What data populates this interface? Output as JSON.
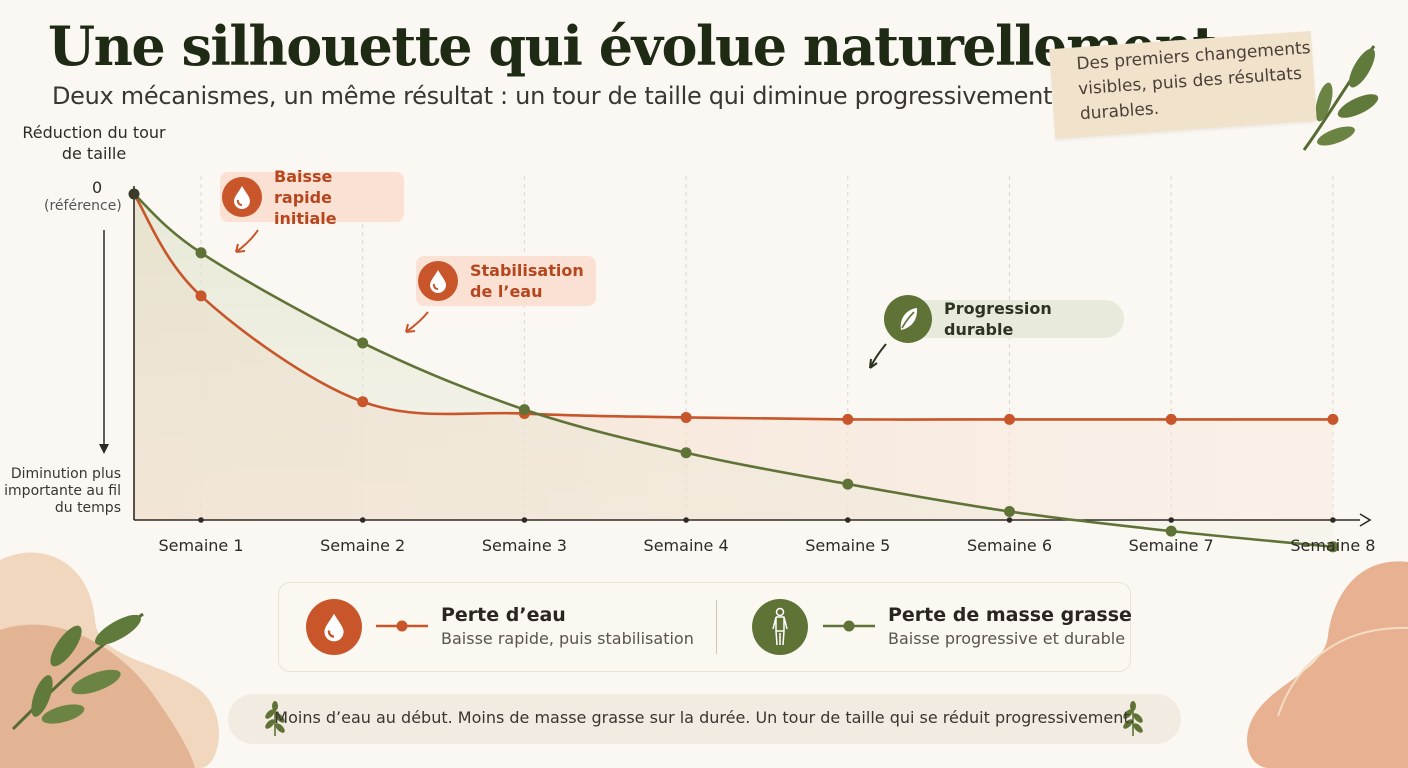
{
  "header": {
    "title": "Une silhouette qui évolue naturellement",
    "subtitle": "Deux mécanismes, un même résultat : un tour de taille qui diminue progressivement."
  },
  "note": {
    "text": "Des premiers changements visibles, puis des résultats durables."
  },
  "axis": {
    "y_title": "Réduction du tour de taille",
    "y_zero": "0",
    "y_zero_note": "(référence)",
    "y_bottom": "Diminution plus importante au fil du temps"
  },
  "callouts": {
    "rapid": "Baisse rapide initiale",
    "stabilisation": "Stabilisation de l’eau",
    "durable": "Progression durable"
  },
  "legend": {
    "water_title": "Perte d’eau",
    "water_desc": "Baisse rapide, puis stabilisation",
    "fat_title": "Perte de masse grasse",
    "fat_desc": "Baisse progressive et durable"
  },
  "footer": {
    "text": "Moins d’eau au début. Moins de masse grasse sur la durée. Un tour de taille qui se réduit progressivement."
  },
  "colors": {
    "water": "#c8562a",
    "fat": "#5f7337",
    "background": "#fbf8f3"
  },
  "icons": {
    "water": "water-drop-icon",
    "fat": "body-silhouette-icon",
    "durable": "leaf-icon",
    "decor": "leaf-sprig-icon"
  },
  "chart_data": {
    "type": "line",
    "categories": [
      "Semaine 1",
      "Semaine 2",
      "Semaine 3",
      "Semaine 4",
      "Semaine 5",
      "Semaine 6",
      "Semaine 7",
      "Semaine 8"
    ],
    "x": [
      0.4,
      1,
      2,
      3,
      4,
      5,
      6,
      7,
      8
    ],
    "series": [
      {
        "name": "Perte d’eau",
        "values": [
          0,
          26,
          53,
          56,
          57,
          57.5,
          57.5,
          57.5,
          57.5
        ]
      },
      {
        "name": "Perte de masse grasse",
        "values": [
          0,
          15,
          38,
          55,
          66,
          74,
          81,
          86,
          90
        ]
      }
    ],
    "ylim": [
      0,
      100
    ],
    "grid": "vertical-dashed",
    "legend": "bottom"
  }
}
